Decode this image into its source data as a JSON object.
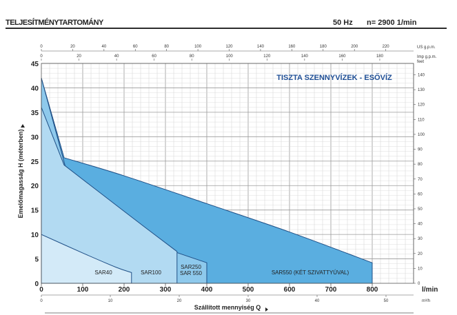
{
  "header": {
    "title": "TELJESÍTMÉNYTARTOMÁNY",
    "frequency": "50 Hz",
    "speed": "n= 2900 1/min"
  },
  "chart_data": {
    "type": "area",
    "title": "TISZTA SZENNYVÍZEK - ESŐVÍZ",
    "xlabel": "Szállított mennyiség Q",
    "ylabel": "Emelőmagasság H (méterben)",
    "x_unit": "l/min",
    "xlim": [
      0,
      900
    ],
    "ylim": [
      0,
      45
    ],
    "x_ticks": [
      0,
      100,
      200,
      300,
      400,
      500,
      600,
      700,
      800
    ],
    "y_ticks": [
      0,
      5,
      10,
      15,
      20,
      25,
      30,
      35,
      40,
      45
    ],
    "grid": true,
    "secondary_axes": {
      "us_gpm": {
        "label": "US g.p.m.",
        "ticks": [
          0,
          20,
          40,
          60,
          80,
          100,
          120,
          140,
          160,
          180,
          200,
          220
        ]
      },
      "imp_gpm": {
        "label": "Imp g.p.m.",
        "ticks": [
          0,
          20,
          40,
          60,
          80,
          100,
          120,
          140,
          160,
          180
        ]
      },
      "m3h": {
        "label": "m³/h",
        "ticks": [
          0,
          10,
          20,
          30,
          40,
          50
        ]
      },
      "feet": {
        "label": "feet",
        "ticks": [
          0,
          10,
          20,
          30,
          40,
          50,
          60,
          70,
          80,
          90,
          100,
          110,
          120,
          130,
          140
        ]
      }
    },
    "series": [
      {
        "name": "SAR550 (KÉT SZIVATTYÚVAL)",
        "color": "#5aaee0",
        "curve": [
          [
            55,
            25.7
          ],
          [
            200,
            22
          ],
          [
            400,
            16.3
          ],
          [
            600,
            10.5
          ],
          [
            800,
            4.2
          ]
        ]
      },
      {
        "name": "SAR250",
        "name2": "SAR 550",
        "color": "#8ec9ec",
        "curve": [
          [
            0,
            42
          ],
          [
            20,
            35
          ],
          [
            80,
            17
          ],
          [
            150,
            14
          ],
          [
            250,
            8.8
          ],
          [
            400,
            4.2
          ]
        ]
      },
      {
        "name": "SAR100",
        "color": "#b2daf2",
        "curve": [
          [
            0,
            36
          ],
          [
            20,
            30
          ],
          [
            55,
            24.2
          ],
          [
            150,
            18
          ],
          [
            250,
            11.5
          ],
          [
            328,
            6.5
          ],
          [
            328,
            0
          ]
        ]
      },
      {
        "name": "SAR40",
        "color": "#d3eaf8",
        "curve": [
          [
            0,
            10
          ],
          [
            100,
            6.2
          ],
          [
            180,
            3.3
          ],
          [
            218,
            2.2
          ],
          [
            218,
            0
          ]
        ]
      }
    ]
  }
}
